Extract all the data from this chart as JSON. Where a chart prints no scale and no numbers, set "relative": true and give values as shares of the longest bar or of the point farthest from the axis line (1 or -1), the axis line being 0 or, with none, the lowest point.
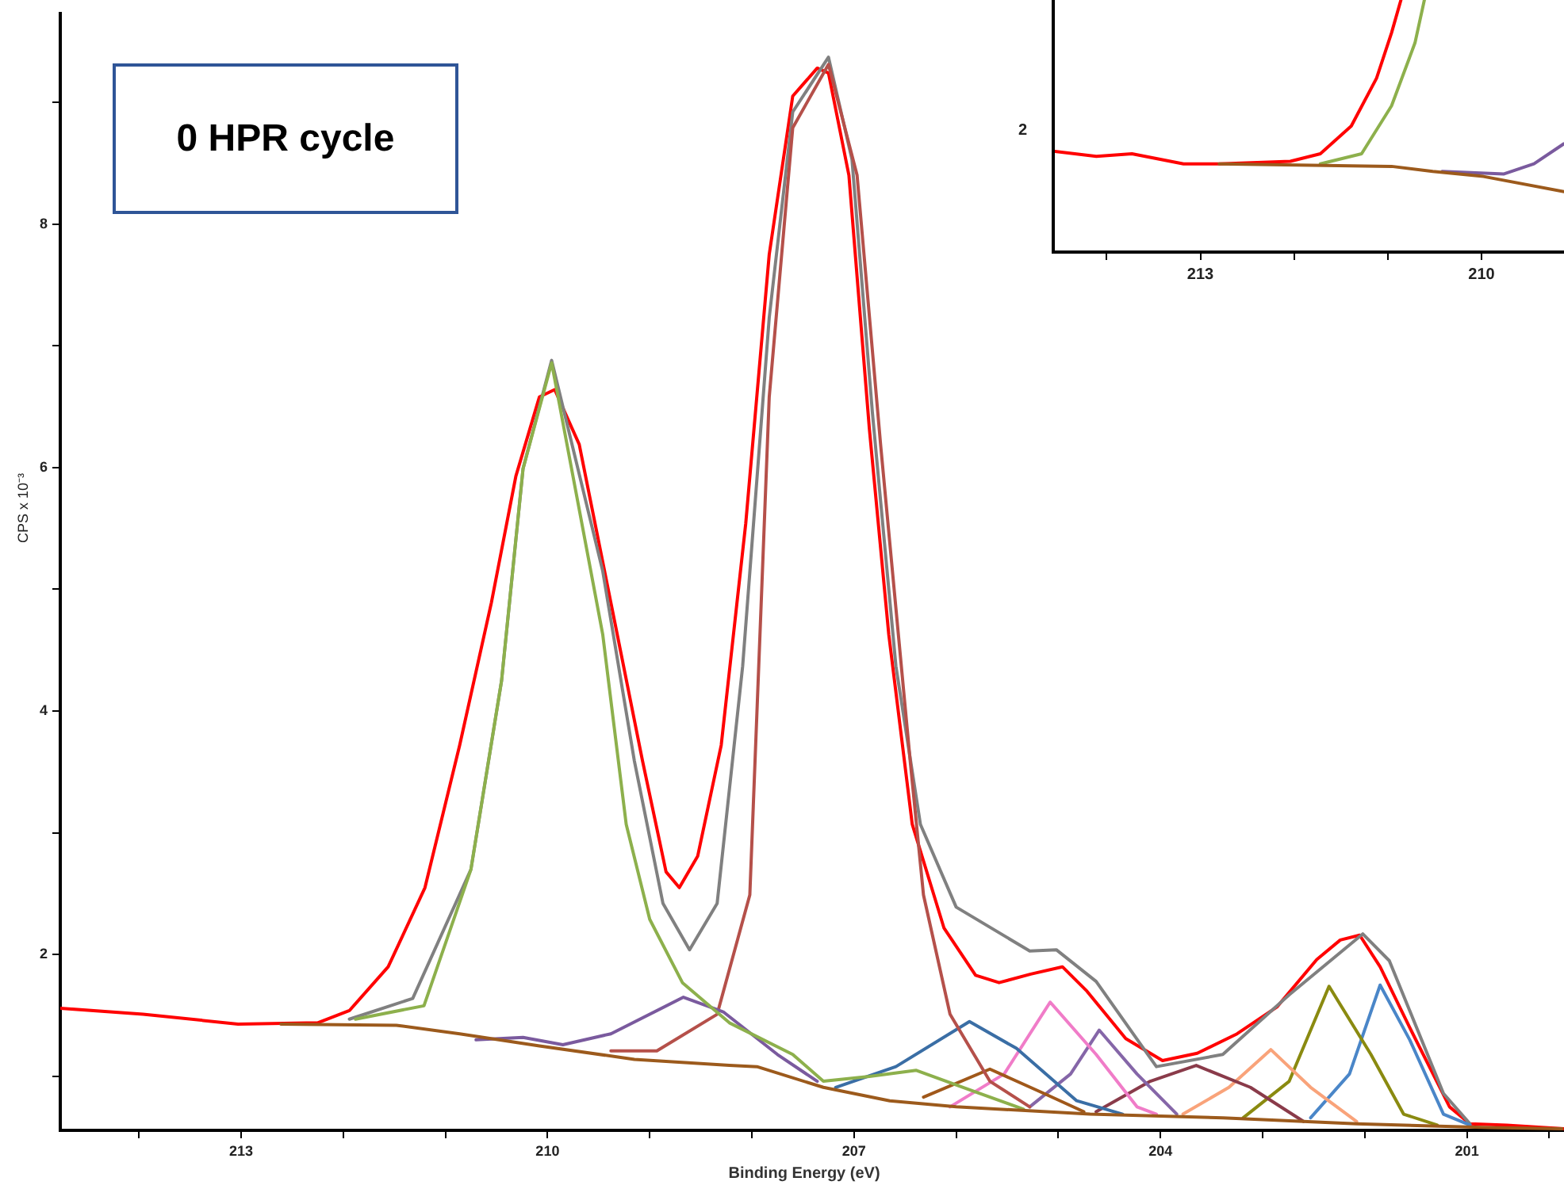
{
  "chart_data": [
    {
      "type": "line",
      "xlabel": "Binding Energy (eV)",
      "ylabel": "CPS x 10⁻³",
      "annotations": [
        "0 HPR cycle"
      ],
      "xlim": [
        214.77,
        200.05
      ],
      "ylim": [
        0.557,
        9.73
      ],
      "xticks": [
        {
          "value": 214,
          "label": null
        },
        213,
        {
          "value": 212,
          "label": null
        },
        {
          "value": 211,
          "label": null
        },
        210,
        {
          "value": 209,
          "label": null
        },
        {
          "value": 208,
          "label": null
        },
        207,
        {
          "value": 206,
          "label": null
        },
        {
          "value": 205,
          "label": null
        },
        204,
        {
          "value": 203,
          "label": null
        },
        {
          "value": 202,
          "label": null
        },
        201,
        {
          "value": 200.2,
          "label": null
        }
      ],
      "yticks": [
        {
          "value": 1,
          "label": null
        },
        2,
        {
          "value": 3,
          "label": null
        },
        4,
        {
          "value": 5,
          "label": null
        },
        6,
        {
          "value": 7,
          "label": null
        },
        8,
        {
          "value": 9,
          "label": null
        }
      ],
      "marker": "none",
      "line_style": "solid",
      "series": [
        {
          "color": "#9c5a1c",
          "x": [
            212.61,
            211.48,
            210.86,
            210.08,
            209.15,
            208.22,
            207.95,
            207.3,
            206.65,
            206.0,
            204.69,
            203.39,
            202.08,
            200.78,
            200.07
          ],
          "values": [
            1.43,
            1.42,
            1.35,
            1.25,
            1.14,
            1.09,
            1.08,
            0.91,
            0.8,
            0.75,
            0.69,
            0.66,
            0.61,
            0.58,
            0.57
          ]
        },
        {
          "color": "#8db04c",
          "x": [
            211.88,
            211.21,
            210.75,
            210.45,
            210.24,
            209.96,
            209.46,
            209.23,
            209.0,
            208.68,
            208.22,
            207.6,
            207.3,
            206.85,
            206.39,
            205.9,
            205.34
          ],
          "values": [
            1.47,
            1.58,
            2.7,
            4.25,
            5.99,
            6.86,
            4.63,
            3.07,
            2.29,
            1.77,
            1.44,
            1.18,
            0.96,
            1.0,
            1.05,
            0.9,
            0.73
          ]
        },
        {
          "color": "#7a5a9e",
          "x": [
            210.7,
            210.24,
            209.85,
            209.38,
            208.67,
            208.28,
            207.75,
            207.36
          ],
          "values": [
            1.3,
            1.32,
            1.26,
            1.35,
            1.65,
            1.53,
            1.18,
            0.96
          ]
        },
        {
          "color": "#b5504a",
          "x": [
            209.38,
            208.93,
            208.34,
            208.02,
            207.83,
            207.6,
            207.25,
            206.97,
            206.74,
            206.45,
            206.32,
            206.06,
            205.67,
            205.28
          ],
          "values": [
            1.21,
            1.21,
            1.51,
            2.49,
            6.58,
            8.79,
            9.31,
            8.4,
            6.19,
            3.59,
            2.49,
            1.51,
            0.96,
            0.75
          ]
        },
        {
          "color": "#3a6ea5",
          "x": [
            207.18,
            206.59,
            205.87,
            205.41,
            204.82,
            204.37
          ],
          "values": [
            0.91,
            1.08,
            1.45,
            1.23,
            0.8,
            0.69
          ]
        },
        {
          "color": "#a0581a",
          "x": [
            206.32,
            205.67,
            205.14,
            204.75
          ],
          "values": [
            0.83,
            1.06,
            0.86,
            0.71
          ]
        },
        {
          "color": "#f07cc8",
          "x": [
            206.06,
            205.53,
            205.08,
            204.63,
            204.23,
            204.04
          ],
          "values": [
            0.75,
            1.02,
            1.61,
            1.18,
            0.75,
            0.69
          ]
        },
        {
          "color": "#8566a8",
          "x": [
            205.28,
            204.88,
            204.6,
            204.23,
            203.84
          ],
          "values": [
            0.75,
            1.02,
            1.38,
            1.02,
            0.69
          ]
        },
        {
          "color": "#8a3b4a",
          "x": [
            204.63,
            204.1,
            203.65,
            203.12,
            202.6
          ],
          "values": [
            0.71,
            0.96,
            1.09,
            0.91,
            0.63
          ]
        },
        {
          "color": "#f9a37a",
          "x": [
            203.78,
            203.33,
            202.92,
            202.53,
            202.08
          ],
          "values": [
            0.69,
            0.91,
            1.22,
            0.91,
            0.63
          ]
        },
        {
          "color": "#8a8a10",
          "x": [
            203.19,
            202.74,
            202.35,
            201.94,
            201.62,
            201.29
          ],
          "values": [
            0.66,
            0.96,
            1.74,
            1.18,
            0.69,
            0.6
          ]
        },
        {
          "color": "#4a86c8",
          "x": [
            202.53,
            202.15,
            201.85,
            201.56,
            201.23,
            200.97
          ],
          "values": [
            0.66,
            1.02,
            1.75,
            1.3,
            0.69,
            0.6
          ]
        },
        {
          "color": "#808080",
          "x": [
            211.94,
            211.32,
            210.75,
            210.45,
            210.24,
            209.96,
            209.46,
            209.15,
            208.87,
            208.61,
            208.34,
            208.09,
            207.83,
            207.6,
            207.25,
            207.02,
            206.82,
            206.59,
            206.35,
            206.0,
            205.28,
            205.02,
            204.63,
            204.04,
            203.39,
            202.74,
            202.02,
            201.76,
            201.23,
            200.97
          ],
          "values": [
            1.47,
            1.64,
            2.7,
            4.25,
            5.99,
            6.88,
            5.15,
            3.59,
            2.42,
            2.04,
            2.42,
            4.37,
            7.23,
            8.92,
            9.37,
            8.53,
            6.45,
            4.37,
            3.07,
            2.39,
            2.03,
            2.04,
            1.78,
            1.08,
            1.18,
            1.67,
            2.17,
            1.95,
            0.86,
            0.61
          ]
        },
        {
          "color": "#ff0000",
          "x": [
            214.77,
            213.96,
            213.03,
            212.25,
            211.94,
            211.56,
            211.2,
            210.86,
            210.55,
            210.31,
            210.08,
            209.93,
            209.69,
            209.38,
            209.07,
            208.84,
            208.71,
            208.53,
            208.3,
            208.06,
            207.83,
            207.6,
            207.36,
            207.25,
            207.05,
            206.85,
            206.66,
            206.43,
            206.12,
            205.81,
            205.58,
            205.27,
            204.96,
            204.72,
            204.34,
            203.98,
            203.64,
            203.25,
            202.86,
            202.47,
            202.24,
            202.05,
            201.85,
            201.56,
            201.17,
            200.97,
            200.61,
            200.05
          ],
          "values": [
            1.56,
            1.51,
            1.43,
            1.44,
            1.54,
            1.9,
            2.55,
            3.72,
            4.89,
            5.93,
            6.58,
            6.64,
            6.19,
            4.89,
            3.59,
            2.68,
            2.55,
            2.81,
            3.72,
            5.54,
            7.75,
            9.05,
            9.28,
            9.24,
            8.4,
            6.32,
            4.63,
            3.07,
            2.22,
            1.83,
            1.77,
            1.84,
            1.9,
            1.7,
            1.31,
            1.13,
            1.19,
            1.35,
            1.57,
            1.96,
            2.12,
            2.16,
            1.9,
            1.4,
            0.75,
            0.61,
            0.6,
            0.57
          ]
        }
      ]
    },
    {
      "type": "line",
      "relative": true,
      "annotations": [
        "2"
      ],
      "xlim": [
        214.57,
        209.12
      ],
      "xticks": [
        {
          "value": 214,
          "label": null
        },
        213,
        {
          "value": 212,
          "label": null
        },
        {
          "value": 211,
          "label": null
        },
        210
      ],
      "marker": "none",
      "line_style": "solid",
      "series": [
        {
          "color": "#9c5a1c",
          "x": [
            212.8,
            210.96,
            210.52,
            209.98,
            209.12
          ],
          "values": [
            0.35,
            0.34,
            0.32,
            0.3,
            0.24
          ]
        },
        {
          "color": "#7a5a9e",
          "x": [
            210.42,
            209.76,
            209.44,
            209.12
          ],
          "values": [
            0.32,
            0.31,
            0.35,
            0.43
          ]
        },
        {
          "color": "#8db04c",
          "x": [
            211.72,
            211.28,
            210.96,
            210.71,
            210.61
          ],
          "values": [
            0.35,
            0.39,
            0.58,
            0.83,
            1
          ]
        },
        {
          "color": "#ff0000",
          "x": [
            214.57,
            214.11,
            213.73,
            213.18,
            212.8,
            212.04,
            211.72,
            211.39,
            211.12,
            210.96,
            210.86
          ],
          "values": [
            0.4,
            0.38,
            0.39,
            0.35,
            0.35,
            0.36,
            0.39,
            0.5,
            0.69,
            0.87,
            1
          ]
        }
      ]
    }
  ]
}
